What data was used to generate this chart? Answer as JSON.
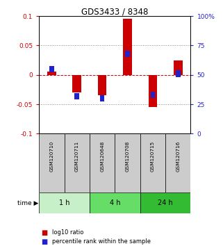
{
  "title": "GDS3433 / 8348",
  "samples": [
    "GSM120710",
    "GSM120711",
    "GSM120648",
    "GSM120708",
    "GSM120715",
    "GSM120716"
  ],
  "log10_ratio": [
    0.005,
    -0.03,
    -0.035,
    0.095,
    -0.055,
    0.025
  ],
  "percentile_rank_pct": [
    55,
    32,
    30,
    68,
    33,
    51
  ],
  "groups": [
    {
      "label": "1 h",
      "start": 0,
      "end": 2
    },
    {
      "label": "4 h",
      "start": 2,
      "end": 4
    },
    {
      "label": "24 h",
      "start": 4,
      "end": 6
    }
  ],
  "group_colors": [
    "#c8f0c8",
    "#66dd66",
    "#33bb33"
  ],
  "ylim": [
    -0.1,
    0.1
  ],
  "yticks_left": [
    -0.1,
    -0.05,
    0,
    0.05,
    0.1
  ],
  "yticks_right": [
    0,
    25,
    50,
    75,
    100
  ],
  "red_color": "#cc0000",
  "blue_color": "#2222cc",
  "sample_bg_color": "#cccccc",
  "dotted_color": "#888888",
  "bar_width": 0.35,
  "blue_bar_width": 0.18,
  "blue_bar_height": 0.011,
  "legend_red_label": "log10 ratio",
  "legend_blue_label": "percentile rank within the sample"
}
